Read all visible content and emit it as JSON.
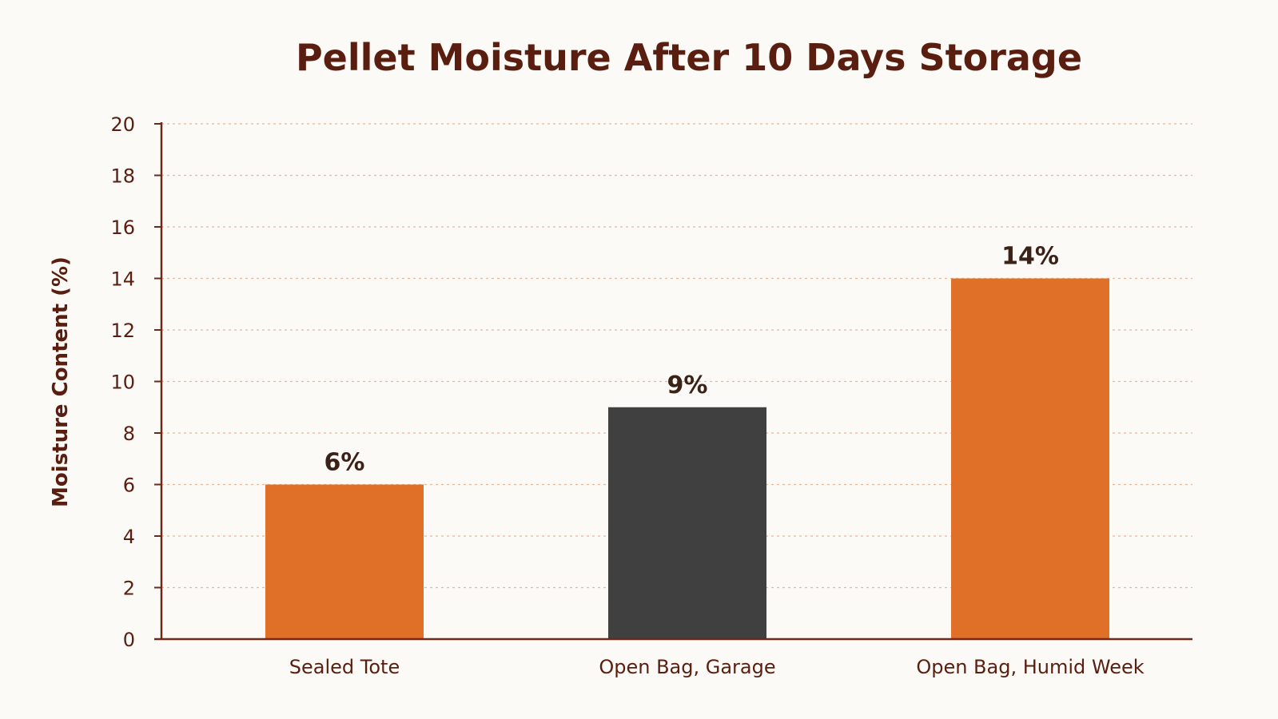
{
  "chart_data": {
    "type": "bar",
    "title": "Pellet Moisture After 10 Days Storage",
    "xlabel": "",
    "ylabel": "Moisture Content (%)",
    "ylim": [
      0,
      20
    ],
    "yticks": [
      0,
      2,
      4,
      6,
      8,
      10,
      12,
      14,
      16,
      18,
      20
    ],
    "grid": true,
    "categories": [
      "Sealed Tote",
      "Open Bag, Garage",
      "Open Bag, Humid Week"
    ],
    "values": [
      6,
      9,
      14
    ],
    "data_labels": [
      "6%",
      "9%",
      "14%"
    ],
    "colors": [
      "#e07028",
      "#404040",
      "#e07028"
    ],
    "axis_color": "#6b2a18",
    "text_color": "#5a1e10"
  }
}
